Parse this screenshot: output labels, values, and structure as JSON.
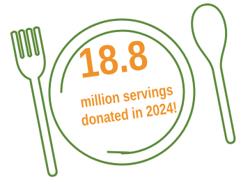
{
  "headline": {
    "number": "18.8",
    "line1": "million servings",
    "line2": "donated in 2024!"
  }
}
